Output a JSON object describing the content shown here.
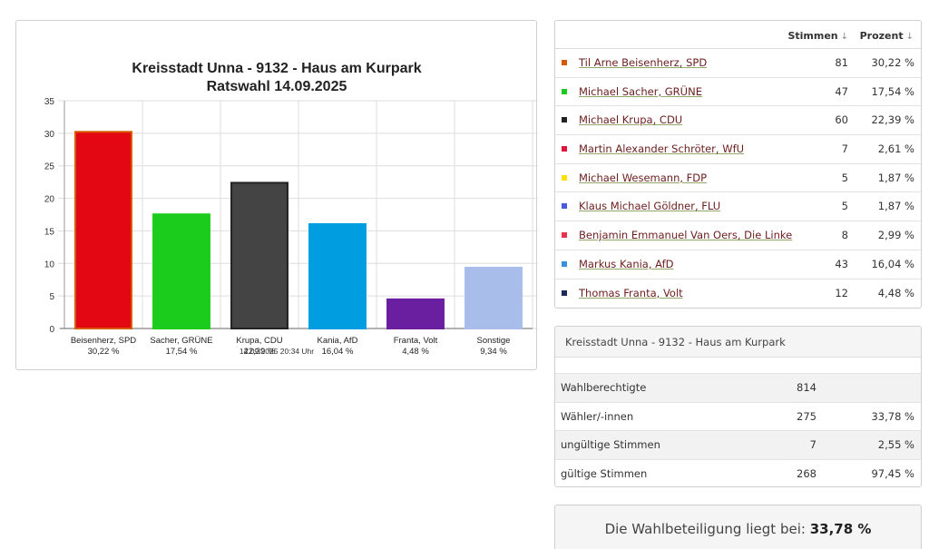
{
  "chart_data": {
    "type": "bar",
    "title": "Kreisstadt Unna - 9132 - Haus am Kurpark",
    "subtitle": "Ratswahl 14.09.2025",
    "categories": [
      "Beisenherz, SPD",
      "Sacher, GRÜNE",
      "Krupa, CDU",
      "Kania, AfD",
      "Franta, Volt",
      "Sonstige"
    ],
    "value_labels": [
      "30,22 %",
      "17,54 %",
      "22,39 %",
      "16,04 %",
      "4,48 %",
      "9,34 %"
    ],
    "values": [
      30.22,
      17.54,
      22.39,
      16.04,
      4.48,
      9.34
    ],
    "colors": [
      "#e30613",
      "#1ccc1c",
      "#444444",
      "#009ee0",
      "#6a1ea0",
      "#a9bdeb"
    ],
    "border_colors": [
      "#d85a00",
      "#1ccc1c",
      "#222222",
      "#009ee0",
      "#6a1ea0",
      "#a9bdeb"
    ],
    "y_ticks": [
      0,
      5,
      10,
      15,
      20,
      25,
      30,
      35
    ],
    "ylim": [
      0,
      35
    ],
    "grid": true,
    "footer": "14.09.2025 20:34 Uhr"
  },
  "results": {
    "header_votes": "Stimmen",
    "header_percent": "Prozent",
    "sort_icon": "↓",
    "rows": [
      {
        "name": "Til Arne Beisenherz, SPD",
        "votes": "81",
        "pct": "30,22 %",
        "color": "#d85a00"
      },
      {
        "name": "Michael Sacher, GRÜNE",
        "votes": "47",
        "pct": "17,54 %",
        "color": "#1ccc1c"
      },
      {
        "name": "Michael Krupa, CDU",
        "votes": "60",
        "pct": "22,39 %",
        "color": "#222222"
      },
      {
        "name": "Martin Alexander Schröter, WfU",
        "votes": "7",
        "pct": "2,61 %",
        "color": "#e3153c"
      },
      {
        "name": "Michael Wesemann, FDP",
        "votes": "5",
        "pct": "1,87 %",
        "color": "#ffe000"
      },
      {
        "name": "Klaus Michael Göldner, FLU",
        "votes": "5",
        "pct": "1,87 %",
        "color": "#4a5ae0"
      },
      {
        "name": "Benjamin Emmanuel Van Oers, Die Linke",
        "votes": "8",
        "pct": "2,99 %",
        "color": "#e8334a"
      },
      {
        "name": "Markus Kania, AfD",
        "votes": "43",
        "pct": "16,04 %",
        "color": "#3a8fd8"
      },
      {
        "name": "Thomas Franta, Volt",
        "votes": "12",
        "pct": "4,48 %",
        "color": "#1e2a5a"
      }
    ]
  },
  "stats": {
    "title": "Kreisstadt Unna - 9132 - Haus am Kurpark",
    "rows": [
      {
        "label": "Wahlberechtigte",
        "value": "814",
        "pct": ""
      },
      {
        "label": "Wähler/-innen",
        "value": "275",
        "pct": "33,78 %"
      },
      {
        "label": "ungültige Stimmen",
        "value": "7",
        "pct": "2,55 %"
      },
      {
        "label": "gültige Stimmen",
        "value": "268",
        "pct": "97,45 %"
      }
    ]
  },
  "turnout": {
    "label": "Die Wahlbeteiligung liegt bei:",
    "value": "33,78 %"
  }
}
